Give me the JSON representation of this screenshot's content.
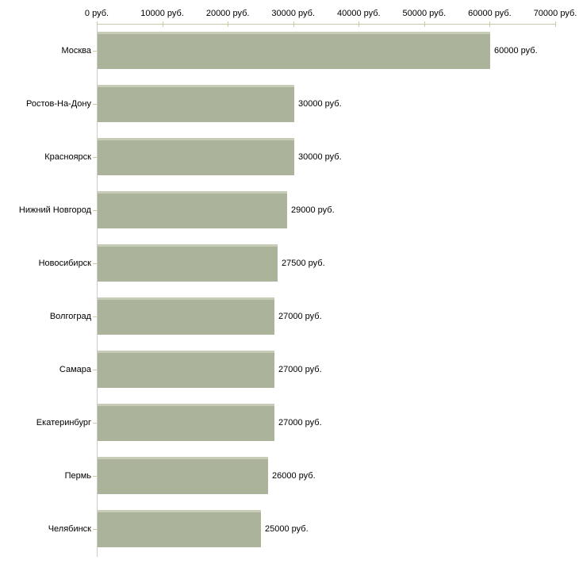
{
  "chart_data": {
    "type": "bar",
    "orientation": "horizontal",
    "title": "",
    "categories": [
      "Москва",
      "Ростов-На-Дону",
      "Красноярск",
      "Нижний Новгород",
      "Новосибирск",
      "Волгоград",
      "Самара",
      "Екатеринбург",
      "Пермь",
      "Челябинск"
    ],
    "values": [
      60000,
      30000,
      30000,
      29000,
      27500,
      27000,
      27000,
      27000,
      26000,
      25000
    ],
    "value_labels": [
      "60000 руб.",
      "30000 руб.",
      "30000 руб.",
      "29000 руб.",
      "27500 руб.",
      "27000 руб.",
      "27000 руб.",
      "26000 руб.",
      "25000 руб."
    ],
    "value_labels_full": [
      "60000 руб.",
      "30000 руб.",
      "30000 руб.",
      "29000 руб.",
      "27500 руб.",
      "27000 руб.",
      "27000 руб.",
      "27000 руб.",
      "26000 руб.",
      "25000 руб."
    ],
    "x_ticks": [
      0,
      10000,
      20000,
      30000,
      40000,
      50000,
      60000,
      70000
    ],
    "x_tick_labels": [
      "0 руб.",
      "10000 руб.",
      "20000 руб.",
      "30000 руб.",
      "40000 руб.",
      "50000 руб.",
      "60000 руб.",
      "70000 руб."
    ],
    "xlim": [
      0,
      70000
    ],
    "unit": "руб.",
    "grid": false,
    "legend": "none",
    "axis_position": "top",
    "colors": {
      "bar_fill": "#abb49a",
      "bar_top_highlight": "#c6ccb6",
      "top_axis_line": "#c9c9aa",
      "x_tick_mark": "#cccc99",
      "left_axis_line": "#cccccc",
      "y_tick_mark": "#ccccaa",
      "text": "#000000",
      "background": "#ffffff"
    }
  }
}
